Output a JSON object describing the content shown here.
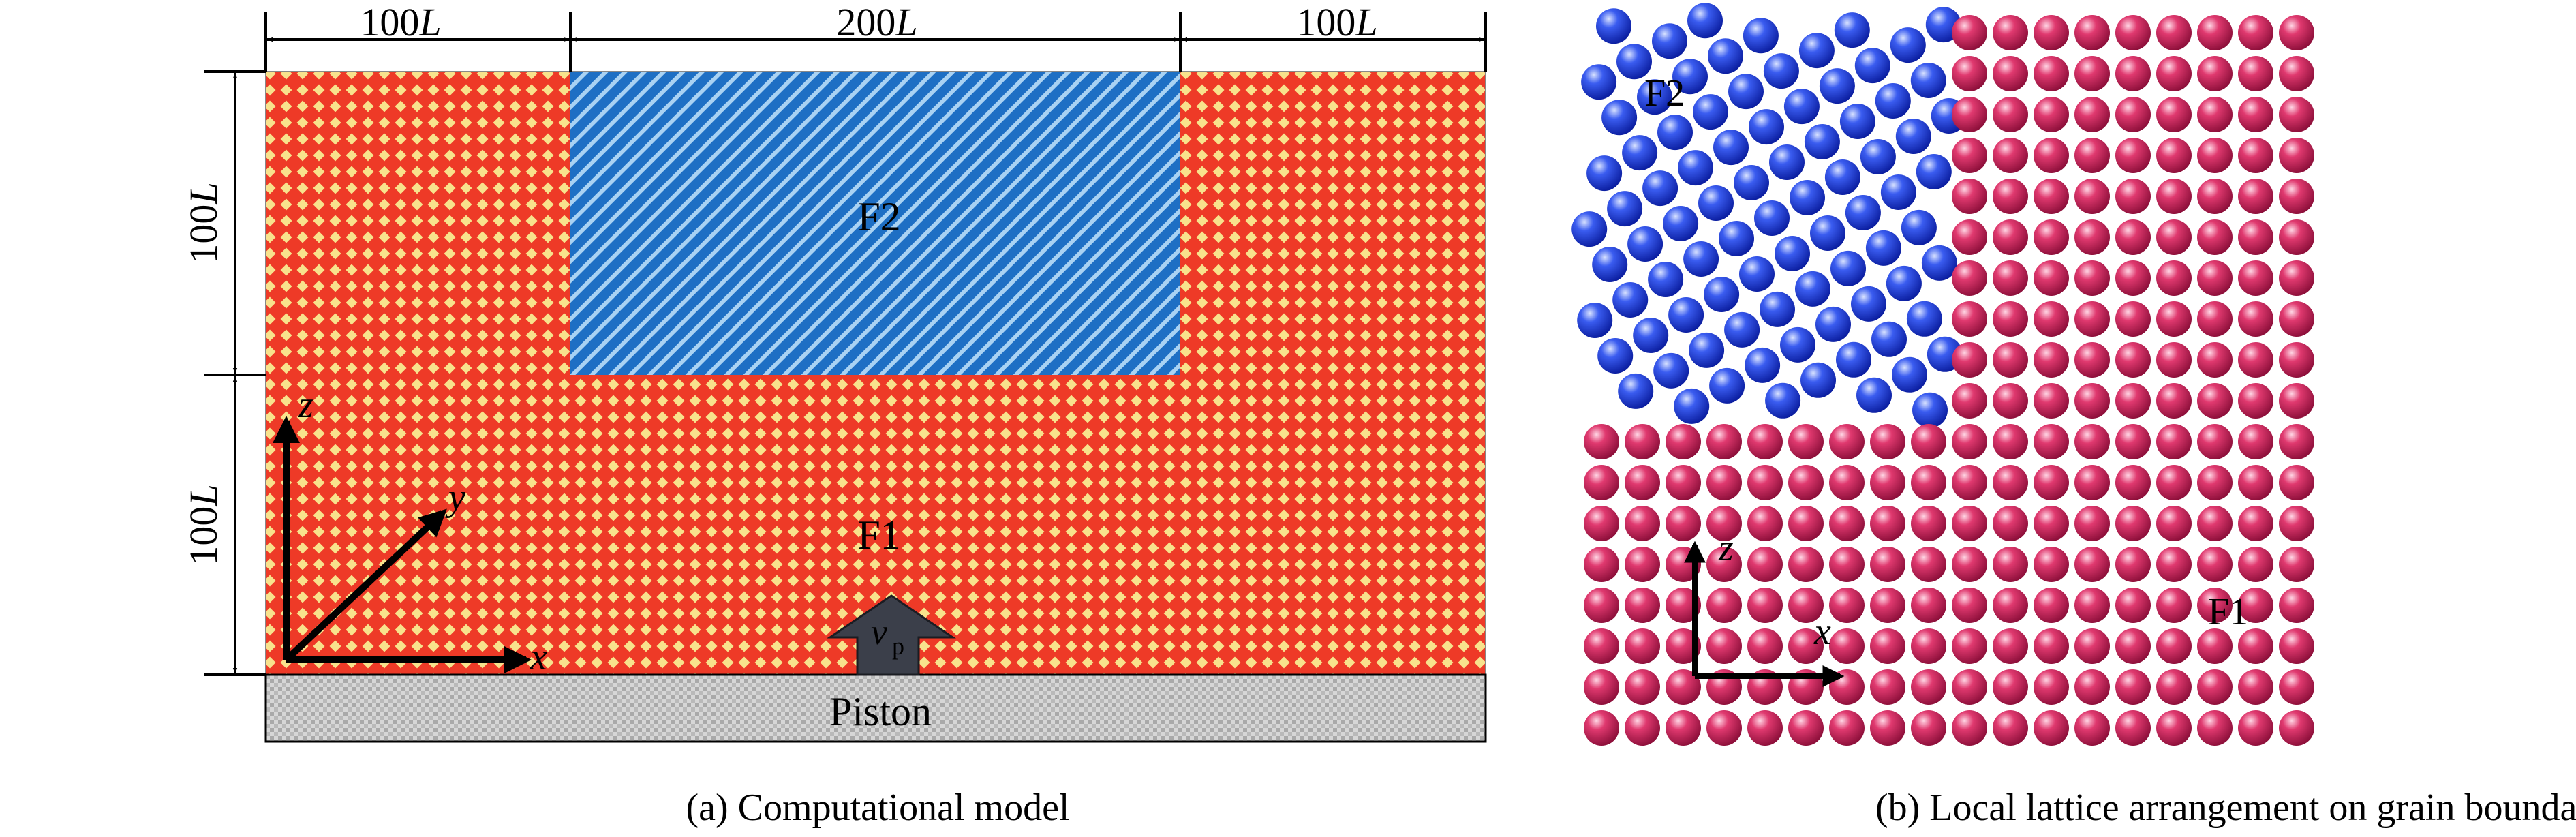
{
  "panel_a": {
    "caption": "(a) Computational model",
    "dims": {
      "top_left": "100L",
      "top_middle": "200L",
      "top_right": "100L",
      "left_upper": "100L",
      "left_lower": "100L"
    },
    "dim_italic_unit": "L",
    "region_f1_label": "F1",
    "region_f2_label": "F2",
    "piston_label": "Piston",
    "velocity_symbol": "v",
    "velocity_subscript": "p",
    "axis_x": "x",
    "axis_y": "y",
    "axis_z": "z",
    "colors": {
      "f1_red": "#ee3a27",
      "f1_yellow": "#f8e28c",
      "f2_blue": "#1e6fc4",
      "f2_light": "#a9d2f3",
      "piston_gray": "#bdbdbd",
      "arrow_dark": "#3b3f4a"
    }
  },
  "panel_b": {
    "caption": "(b)  Local lattice arrangement on grain boundary",
    "region_f1_label": "F1",
    "region_f2_label": "F2",
    "axis_x": "x",
    "axis_z": "z",
    "colors": {
      "f2_atom": "#1f3fe0",
      "f1_atom": "#d8326a"
    }
  }
}
